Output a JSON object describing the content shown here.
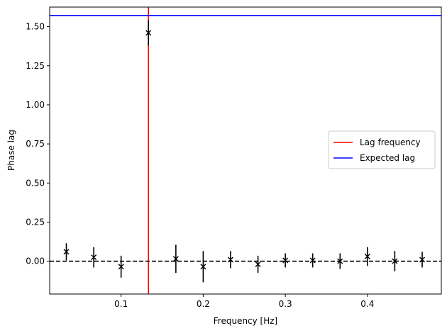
{
  "chart_data": {
    "type": "scatter",
    "title": "",
    "xlabel": "Frequency [Hz]",
    "ylabel": "Phase lag",
    "xlim": [
      0.013,
      0.49
    ],
    "ylim": [
      -0.21,
      1.625
    ],
    "x_ticks": [
      0.1,
      0.2,
      0.3,
      0.4
    ],
    "x_tick_labels": [
      "0.1",
      "0.2",
      "0.3",
      "0.4"
    ],
    "y_ticks": [
      0.0,
      0.25,
      0.5,
      0.75,
      1.0,
      1.25,
      1.5
    ],
    "y_tick_labels": [
      "0.00",
      "0.25",
      "0.50",
      "0.75",
      "1.00",
      "1.25",
      "1.50"
    ],
    "grid": false,
    "legend_position": "center-right",
    "colors": {
      "data": "#000000",
      "lag_frequency": "#ff0000",
      "expected_lag": "#0000ff"
    },
    "series": [
      {
        "marker": "x",
        "x": [
          0.0333,
          0.0667,
          0.1,
          0.1333,
          0.1667,
          0.2,
          0.2333,
          0.2667,
          0.3,
          0.3333,
          0.3667,
          0.4,
          0.4333,
          0.4667
        ],
        "y": [
          0.06,
          0.025,
          -0.035,
          1.46,
          0.015,
          -0.035,
          0.01,
          -0.02,
          0.005,
          0.005,
          0.0,
          0.03,
          0.0,
          0.01
        ],
        "yerr": [
          0.055,
          0.065,
          0.07,
          0.08,
          0.09,
          0.1,
          0.055,
          0.055,
          0.045,
          0.045,
          0.05,
          0.06,
          0.065,
          0.05
        ]
      }
    ],
    "reference_lines": [
      {
        "name": "Lag frequency",
        "orientation": "vertical",
        "value": 0.1333,
        "color": "#ff0000",
        "style": "solid"
      },
      {
        "name": "Expected lag",
        "orientation": "horizontal",
        "value": 1.5708,
        "color": "#0000ff",
        "style": "solid"
      },
      {
        "orientation": "horizontal",
        "value": 0.0,
        "color": "#000000",
        "style": "dashed"
      }
    ],
    "legend": [
      "Lag frequency",
      "Expected lag"
    ]
  }
}
